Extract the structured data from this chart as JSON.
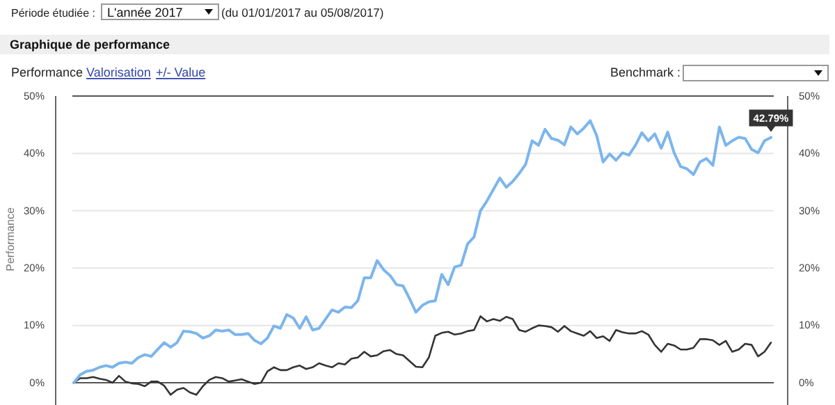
{
  "chart_data": {
    "type": "line",
    "title": "Graphique de performance",
    "ylabel": "Performance",
    "annotations": [
      "Période étudiée :",
      "L'année 2017",
      "(du 01/01/2017 au 05/08/2017)",
      "Performance",
      "Valorisation",
      "+/- Value",
      "Benchmark :",
      {
        "text": "42.79%",
        "y": 42.79
      }
    ],
    "categories": [
      null,
      null,
      null,
      null,
      null,
      null,
      null,
      null,
      null,
      null,
      null,
      null,
      null,
      null,
      null,
      null,
      null,
      null,
      null,
      null,
      null,
      null,
      null,
      null,
      null,
      null,
      null,
      null,
      null,
      null,
      null,
      null,
      null,
      null,
      null,
      null,
      null,
      null,
      null,
      null,
      null,
      null,
      null,
      null,
      null,
      null,
      null,
      null,
      null,
      null,
      null,
      null,
      null,
      null,
      null,
      null,
      null,
      null,
      null,
      null,
      null,
      null,
      null,
      null,
      null,
      null,
      null,
      null,
      null,
      null,
      null,
      null,
      null,
      null,
      null,
      null,
      null,
      null,
      null,
      null,
      null,
      null,
      null,
      null,
      null,
      null,
      null,
      null,
      null,
      null,
      null,
      null,
      null,
      null,
      null,
      null,
      null,
      null,
      null,
      null,
      null,
      null,
      null,
      null,
      null,
      null,
      null,
      null,
      null
    ],
    "ylim": [
      -4,
      50
    ],
    "yticks": [
      {
        "value": 0,
        "label": "0%"
      },
      {
        "value": 10,
        "label": "10%"
      },
      {
        "value": 20,
        "label": "20%"
      },
      {
        "value": 30,
        "label": "30%"
      },
      {
        "value": 40,
        "label": "40%"
      },
      {
        "value": 50,
        "label": "50%"
      }
    ],
    "y2lim": [
      -4,
      50
    ],
    "y2ticks": [
      {
        "value": 0,
        "label": "0%"
      },
      {
        "value": 10,
        "label": "10%"
      },
      {
        "value": 20,
        "label": "20%"
      },
      {
        "value": 30,
        "label": "30%"
      },
      {
        "value": 40,
        "label": "40%"
      },
      {
        "value": 50,
        "label": "50%"
      }
    ],
    "grid": "y",
    "marker": "none",
    "line_style": "solid",
    "series": [
      {
        "color": "#7cb5ec",
        "values": [
          0,
          1.4,
          2.0,
          2.2,
          2.7,
          3.0,
          2.7,
          3.4,
          3.6,
          3.4,
          4.4,
          4.9,
          4.6,
          5.8,
          7.0,
          6.2,
          7.0,
          9.0,
          8.9,
          8.6,
          7.8,
          8.2,
          9.2,
          9.0,
          9.2,
          8.4,
          8.4,
          8.6,
          7.4,
          6.8,
          7.8,
          9.9,
          9.5,
          11.9,
          11.3,
          9.5,
          11.5,
          9.2,
          9.5,
          11.1,
          12.7,
          12.3,
          13.2,
          13.1,
          14.3,
          18.3,
          18.3,
          21.3,
          19.7,
          18.7,
          17.1,
          16.9,
          14.7,
          12.3,
          13.5,
          14.1,
          14.3,
          18.9,
          17.1,
          20.2,
          20.5,
          24.2,
          25.4,
          30.0,
          31.7,
          33.7,
          35.7,
          34.1,
          35.1,
          36.5,
          38.1,
          42.2,
          41.4,
          44.2,
          42.6,
          42.3,
          41.5,
          44.6,
          43.4,
          44.4,
          45.7,
          43.1,
          38.5,
          39.9,
          38.8,
          40.1,
          39.7,
          41.4,
          43.6,
          42.2,
          43.4,
          40.9,
          43.7,
          40.1,
          37.7,
          37.3,
          36.3,
          38.5,
          39.1,
          37.9,
          44.6,
          41.4,
          42.2,
          42.8,
          42.6,
          40.7,
          40.1,
          42.2,
          42.79
        ]
      },
      {
        "color": "#333333",
        "values": [
          0,
          0.8,
          0.8,
          1.0,
          0.7,
          0.5,
          0,
          1.2,
          0.2,
          -0.1,
          -0.2,
          -0.6,
          0.2,
          0.2,
          -0.5,
          -2.1,
          -1.2,
          -0.9,
          -1.7,
          -2.1,
          -0.6,
          0.5,
          1.0,
          0.8,
          0.2,
          0.4,
          0.6,
          0.2,
          -0.2,
          0,
          2.0,
          2.7,
          2.2,
          2.2,
          2.7,
          3.0,
          2.4,
          2.7,
          3.4,
          3.0,
          2.7,
          3.4,
          3.2,
          4.2,
          4.4,
          5.4,
          4.6,
          4.8,
          5.5,
          5.7,
          5.0,
          4.8,
          3.8,
          2.8,
          2.7,
          4.4,
          8.2,
          8.7,
          8.9,
          8.4,
          8.6,
          9.0,
          9.2,
          11.6,
          10.7,
          11.1,
          10.8,
          11.5,
          11.1,
          9.2,
          8.9,
          9.5,
          10.0,
          9.9,
          9.7,
          8.9,
          9.9,
          9.0,
          8.6,
          8.2,
          9.0,
          7.8,
          8.1,
          7.3,
          9.2,
          8.8,
          8.6,
          8.6,
          9.0,
          8.4,
          6.6,
          5.4,
          6.8,
          6.5,
          5.8,
          5.8,
          6.1,
          7.6,
          7.6,
          7.4,
          6.6,
          7.3,
          5.4,
          5.8,
          6.8,
          6.6,
          4.6,
          5.4,
          7.0
        ]
      }
    ]
  }
}
